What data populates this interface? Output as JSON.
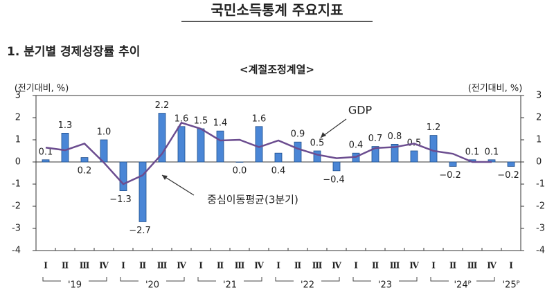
{
  "chart_data": {
    "type": "bar",
    "title": "국민소득통계 주요지표",
    "section_title": "1. 분기별 경제성장률 추이",
    "subtitle": "<계절조정계열>",
    "y_label": "(전기대비, %)",
    "y2_label": "(전기대비, %)",
    "categories": [
      "Ⅰ",
      "Ⅱ",
      "Ⅲ",
      "Ⅳ",
      "Ⅰ",
      "Ⅱ",
      "Ⅲ",
      "Ⅳ",
      "Ⅰ",
      "Ⅱ",
      "Ⅲ",
      "Ⅳ",
      "Ⅰ",
      "Ⅱ",
      "Ⅲ",
      "Ⅳ",
      "Ⅰ",
      "Ⅱ",
      "Ⅲ",
      "Ⅳ",
      "Ⅰ",
      "Ⅱ",
      "Ⅲ",
      "Ⅳ",
      "Ⅰ"
    ],
    "years": [
      "'19",
      "'20",
      "'21",
      "'22",
      "'23",
      "'24ᴾ",
      "'25ᴾ"
    ],
    "series": [
      {
        "name": "GDP",
        "type": "bar",
        "color": "#4a86d6",
        "values": [
          0.1,
          1.3,
          0.2,
          1.0,
          -1.3,
          -2.7,
          2.2,
          1.6,
          1.5,
          1.4,
          0.0,
          1.6,
          0.4,
          0.9,
          0.5,
          -0.4,
          0.4,
          0.7,
          0.8,
          0.5,
          1.2,
          -0.2,
          0.1,
          0.1,
          -0.2
        ],
        "value_labels": [
          "0.1",
          "1.3",
          "0.2",
          "1.0",
          "−1.3",
          "−2.7",
          "2.2",
          "1.6",
          "1.5",
          "1.4",
          "0.0",
          "1.6",
          "0.4",
          "0.9",
          "0.5",
          "−0.4",
          "0.4",
          "0.7",
          "0.8",
          "0.5",
          "1.2",
          "−0.2",
          "0.1",
          "0.1",
          "−0.2"
        ]
      },
      {
        "name": "중심이동평균(3분기)",
        "type": "line",
        "color": "#6b4c8f",
        "values": [
          0.65,
          0.53,
          0.83,
          -0.03,
          -1.0,
          -0.6,
          0.37,
          1.77,
          1.5,
          0.97,
          1.0,
          0.67,
          0.97,
          0.6,
          0.33,
          0.17,
          0.23,
          0.63,
          0.67,
          0.83,
          0.5,
          0.37,
          0.0,
          0.0,
          null
        ]
      }
    ],
    "ylim": [
      -4,
      3
    ],
    "yticks": [
      -4,
      -3,
      -2,
      -1,
      0,
      1,
      2,
      3
    ],
    "y2lim": [
      -4,
      3
    ],
    "y2ticks": [
      -4,
      -3,
      -2,
      -1,
      0,
      1,
      2,
      3
    ]
  }
}
